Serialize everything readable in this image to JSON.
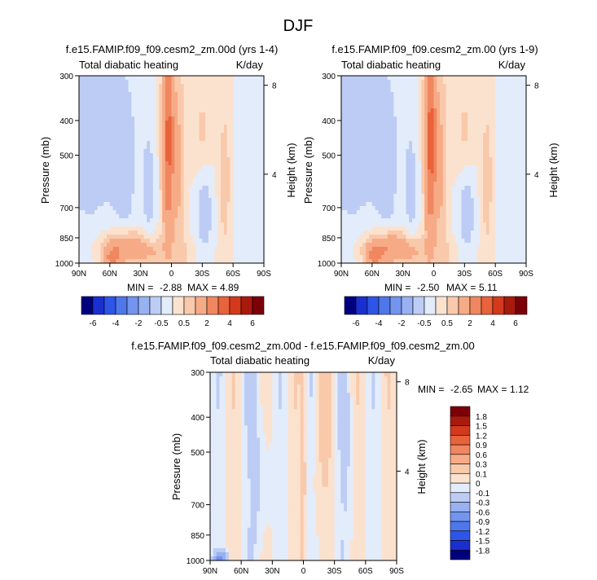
{
  "figure": {
    "title": "DJF"
  },
  "colors": {
    "main_scale": [
      "#00007f",
      "#1a2fcf",
      "#2e55e8",
      "#4f77ec",
      "#7394ef",
      "#98b1f2",
      "#bcccf5",
      "#e3ecfa",
      "#fbe2cf",
      "#f9c9ab",
      "#f6ab86",
      "#f08760",
      "#e8623a",
      "#d4391c",
      "#a91a0c",
      "#7c0007"
    ],
    "diff_scale": [
      "#00007f",
      "#1a2fcf",
      "#2e55e8",
      "#4f77ec",
      "#7394ef",
      "#98b1f2",
      "#bcccf5",
      "#e3ecfa",
      "#fbe2cf",
      "#f9c9ab",
      "#f6ab86",
      "#f08760",
      "#e8623a",
      "#d4391c",
      "#a91a0c",
      "#7c0007"
    ]
  },
  "chart_data": [
    {
      "type": "heatmap",
      "title": "f.e15.FAMIP.f09_f09.cesm2_zm.00d (yrs 1-4)",
      "left_label": "Total diabatic heating",
      "right_label": "K/day",
      "ylabel": "Pressure (mb)",
      "ylabel_right": "Height (km)",
      "x_ticks": [
        "90N",
        "60N",
        "30N",
        "0",
        "30S",
        "60S",
        "90S"
      ],
      "x_range": [
        90,
        -90
      ],
      "y_ticks": [
        300,
        400,
        500,
        700,
        850,
        1000
      ],
      "y_range": [
        1000,
        300
      ],
      "y_scale": "log",
      "height_ticks": [
        4,
        8
      ],
      "stats": {
        "min_label": "MIN =",
        "min": "-2.88",
        "max_label": "MAX =",
        "max": "4.89"
      },
      "levels": [
        -6,
        -5,
        -4,
        -3,
        -2,
        -1,
        -0.5,
        0,
        0.5,
        1,
        2,
        3,
        4,
        5,
        6
      ],
      "colorbar_labels": [
        "-6",
        "-4",
        "-2",
        "-0.5",
        "0.5",
        "2",
        "4",
        "6"
      ],
      "variant": 0
    },
    {
      "type": "heatmap",
      "title": "f.e15.FAMIP.f09_f09.cesm2_zm.00 (yrs 1-9)",
      "left_label": "Total diabatic heating",
      "right_label": "K/day",
      "ylabel": "Pressure (mb)",
      "ylabel_right": "Height (km)",
      "x_ticks": [
        "90N",
        "60N",
        "30N",
        "0",
        "30S",
        "60S",
        "90S"
      ],
      "x_range": [
        90,
        -90
      ],
      "y_ticks": [
        300,
        400,
        500,
        700,
        850,
        1000
      ],
      "y_range": [
        1000,
        300
      ],
      "y_scale": "log",
      "height_ticks": [
        4,
        8
      ],
      "stats": {
        "min_label": "MIN =",
        "min": "-2.50",
        "max_label": "MAX =",
        "max": "5.11"
      },
      "levels": [
        -6,
        -5,
        -4,
        -3,
        -2,
        -1,
        -0.5,
        0,
        0.5,
        1,
        2,
        3,
        4,
        5,
        6
      ],
      "colorbar_labels": [
        "-6",
        "-4",
        "-2",
        "-0.5",
        "0.5",
        "2",
        "4",
        "6"
      ],
      "variant": 1
    },
    {
      "type": "heatmap",
      "title": "f.e15.FAMIP.f09_f09.cesm2_zm.00d - f.e15.FAMIP.f09_f09.cesm2_zm.00",
      "left_label": "Total diabatic heating",
      "right_label": "K/day",
      "ylabel": "Pressure (mb)",
      "ylabel_right": "Height (km)",
      "x_ticks": [
        "90N",
        "60N",
        "30N",
        "0",
        "30S",
        "60S",
        "90S"
      ],
      "x_range": [
        90,
        -90
      ],
      "y_ticks": [
        300,
        400,
        500,
        700,
        850,
        1000
      ],
      "y_range": [
        1000,
        300
      ],
      "y_scale": "log",
      "height_ticks": [
        4,
        8
      ],
      "stats": {
        "min_label": "MIN =",
        "min": "-2.65",
        "max_label": "MAX =",
        "max": "1.12"
      },
      "levels": [
        -1.8,
        -1.5,
        -1.2,
        -0.9,
        -0.6,
        -0.3,
        -0.1,
        0,
        0.1,
        0.3,
        0.6,
        0.9,
        1.2,
        1.5,
        1.8
      ],
      "colorbar_labels": [
        "-1.8",
        "-1.5",
        "-1.2",
        "-0.9",
        "-0.6",
        "-0.3",
        "-0.1",
        "0",
        "0.1",
        "0.3",
        "0.6",
        "0.9",
        "1.2",
        "1.5",
        "1.8"
      ]
    }
  ]
}
